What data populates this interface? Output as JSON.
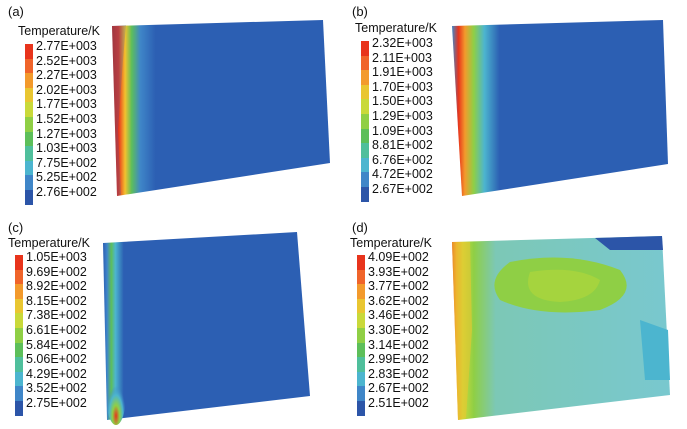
{
  "panels": [
    {
      "id": "a",
      "label": "(a)",
      "legend_title": "Temperature/K",
      "values": [
        "2.77E+003",
        "2.52E+003",
        "2.27E+003",
        "2.02E+003",
        "1.77E+003",
        "1.52E+003",
        "1.27E+003",
        "1.03E+003",
        "7.75E+002",
        "5.25E+002",
        "2.76E+002"
      ]
    },
    {
      "id": "b",
      "label": "(b)",
      "legend_title": "Temperature/K",
      "values": [
        "2.32E+003",
        "2.11E+003",
        "1.91E+003",
        "1.70E+003",
        "1.50E+003",
        "1.29E+003",
        "1.09E+003",
        "8.81E+002",
        "6.76E+002",
        "4.72E+002",
        "2.67E+002"
      ]
    },
    {
      "id": "c",
      "label": "(c)",
      "legend_title": "Temperature/K",
      "values": [
        "1.05E+003",
        "9.69E+002",
        "8.92E+002",
        "8.15E+002",
        "7.38E+002",
        "6.61E+002",
        "5.84E+002",
        "5.06E+002",
        "4.29E+002",
        "3.52E+002",
        "2.75E+002"
      ]
    },
    {
      "id": "d",
      "label": "(d)",
      "legend_title": "Temperature/K",
      "values": [
        "4.09E+002",
        "3.93E+002",
        "3.77E+002",
        "3.62E+002",
        "3.46E+002",
        "3.30E+002",
        "3.14E+002",
        "2.99E+002",
        "2.83E+002",
        "2.67E+002",
        "2.51E+002"
      ]
    }
  ],
  "colormap": [
    "#e8341c",
    "#f0642a",
    "#f39a2c",
    "#e9c631",
    "#c9d93a",
    "#8fcf45",
    "#5dbf5a",
    "#4fbf9c",
    "#4cb5cf",
    "#3f86c8",
    "#2c55a8"
  ]
}
